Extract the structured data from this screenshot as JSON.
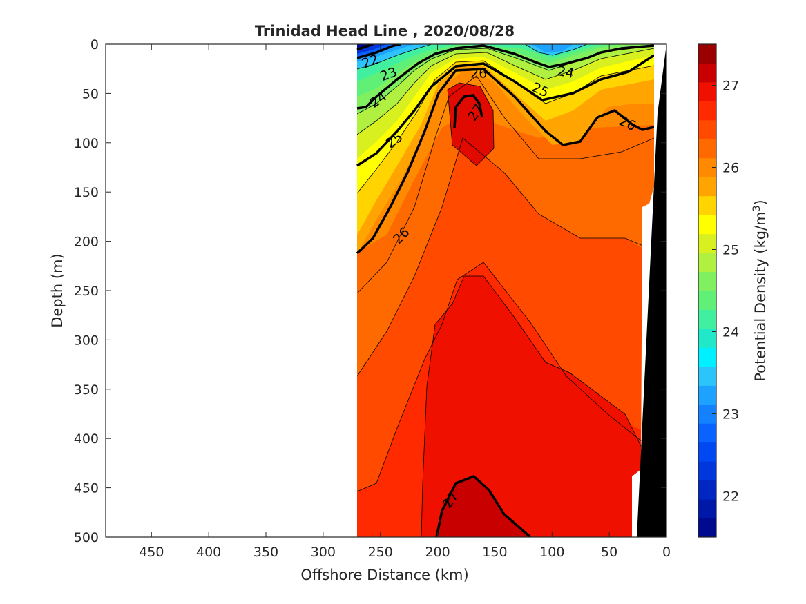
{
  "chart_data": {
    "type": "contour",
    "title": "Trinidad Head Line , 2020/08/28",
    "xlabel": "Offshore Distance (km)",
    "ylabel": "Depth (m)",
    "colorbar_label": "Potential Density (kg/m",
    "colorbar_label_sup": "3",
    "colorbar_label_tail": ")",
    "xlim": [
      490,
      0
    ],
    "ylim": [
      500,
      0
    ],
    "x_reversed": true,
    "y_reversed": true,
    "xticks": [
      450,
      400,
      350,
      300,
      250,
      200,
      150,
      100,
      50,
      0
    ],
    "yticks": [
      0,
      50,
      100,
      150,
      200,
      250,
      300,
      350,
      400,
      450,
      500
    ],
    "colorbar": {
      "range": [
        21.5,
        27.5
      ],
      "step": 0.25,
      "ticks": [
        22,
        23,
        24,
        25,
        26,
        27
      ],
      "colors": [
        "#000a8f",
        "#0018a8",
        "#0027c2",
        "#0037dc",
        "#0048f2",
        "#0a62ff",
        "#1482ff",
        "#1ea2ff",
        "#2cc4fb",
        "#00f0ff",
        "#20e8c8",
        "#40f0a0",
        "#60f078",
        "#80f060",
        "#b0f040",
        "#d8f020",
        "#ffff00",
        "#ffd400",
        "#ffa400",
        "#ff8a00",
        "#ff6a00",
        "#ff4a00",
        "#ff2a00",
        "#f01000",
        "#c80000",
        "#9a0000"
      ]
    },
    "data_extent_km": [
      270,
      10
    ],
    "contour_labels": [
      {
        "x": 259,
        "y": 17,
        "text": "22",
        "angle": -20
      },
      {
        "x": 243,
        "y": 30,
        "text": "23",
        "angle": -20
      },
      {
        "x": 252,
        "y": 56,
        "text": "24",
        "angle": -35
      },
      {
        "x": 238,
        "y": 97,
        "text": "25",
        "angle": -35
      },
      {
        "x": 232,
        "y": 194,
        "text": "26",
        "angle": -45
      },
      {
        "x": 88,
        "y": 28,
        "text": "24",
        "angle": 10
      },
      {
        "x": 110,
        "y": 46,
        "text": "25",
        "angle": 25
      },
      {
        "x": 164,
        "y": 29,
        "text": "26",
        "angle": 0
      },
      {
        "x": 34,
        "y": 80,
        "text": "26",
        "angle": 25
      },
      {
        "x": 167,
        "y": 69,
        "text": "27",
        "angle": -55
      },
      {
        "x": 189,
        "y": 462,
        "text": "27",
        "angle": -55
      }
    ]
  }
}
